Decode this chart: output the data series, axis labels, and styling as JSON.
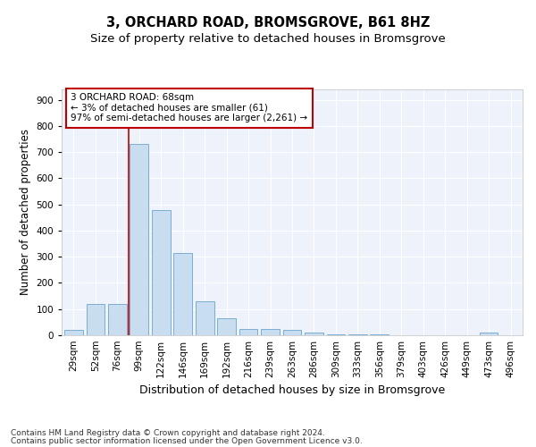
{
  "title1": "3, ORCHARD ROAD, BROMSGROVE, B61 8HZ",
  "title2": "Size of property relative to detached houses in Bromsgrove",
  "xlabel": "Distribution of detached houses by size in Bromsgrove",
  "ylabel": "Number of detached properties",
  "categories": [
    "29sqm",
    "52sqm",
    "76sqm",
    "99sqm",
    "122sqm",
    "146sqm",
    "169sqm",
    "192sqm",
    "216sqm",
    "239sqm",
    "263sqm",
    "286sqm",
    "309sqm",
    "333sqm",
    "356sqm",
    "379sqm",
    "403sqm",
    "426sqm",
    "449sqm",
    "473sqm",
    "496sqm"
  ],
  "values": [
    20,
    120,
    120,
    730,
    480,
    315,
    130,
    65,
    25,
    25,
    20,
    10,
    5,
    5,
    5,
    0,
    0,
    0,
    0,
    10,
    0
  ],
  "bar_color": "#c9ddf0",
  "bar_edge_color": "#7aadd4",
  "vline_x_index": 2.5,
  "vline_color": "#c00000",
  "annotation_line1": "3 ORCHARD ROAD: 68sqm",
  "annotation_line2": "← 3% of detached houses are smaller (61)",
  "annotation_line3": "97% of semi-detached houses are larger (2,261) →",
  "annotation_box_facecolor": "white",
  "annotation_box_edgecolor": "#c00000",
  "ylim_max": 940,
  "yticks": [
    0,
    100,
    200,
    300,
    400,
    500,
    600,
    700,
    800,
    900
  ],
  "footer1": "Contains HM Land Registry data © Crown copyright and database right 2024.",
  "footer2": "Contains public sector information licensed under the Open Government Licence v3.0.",
  "bg_color": "#eef2fa",
  "fig_bg": "#ffffff",
  "grid_color": "#ffffff",
  "title1_fontsize": 10.5,
  "title2_fontsize": 9.5,
  "ylabel_fontsize": 8.5,
  "xlabel_fontsize": 9,
  "tick_fontsize": 7.5,
  "annot_fontsize": 7.5,
  "footer_fontsize": 6.5
}
